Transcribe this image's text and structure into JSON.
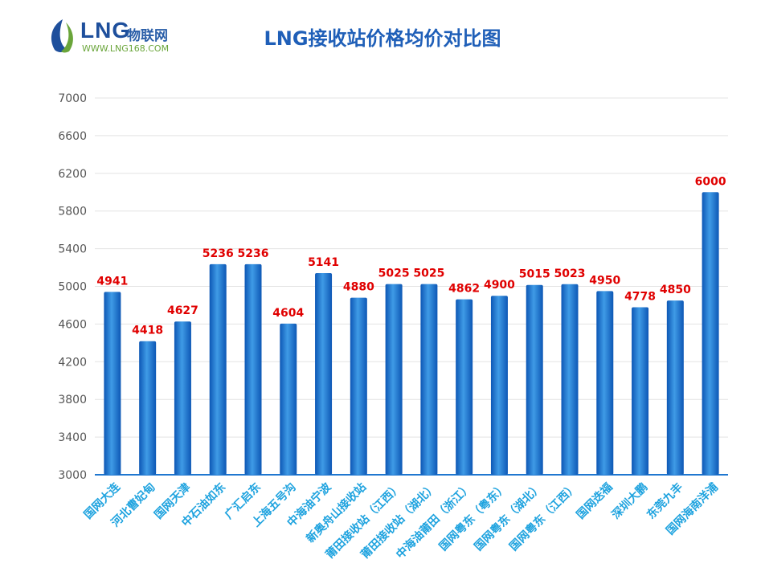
{
  "brand": {
    "name_prefix": "LNG",
    "name_suffix": "物联网",
    "url": "WWW.LNG168.COM",
    "colors": {
      "blue": "#1e4f9c",
      "green": "#6aa53a"
    }
  },
  "chart_data": {
    "type": "bar",
    "title": "LNG接收站价格均价对比图",
    "xlabel": "",
    "ylabel": "",
    "ylim": [
      3000,
      7000
    ],
    "yticks": [
      3000,
      3400,
      3800,
      4200,
      4600,
      5000,
      5400,
      5800,
      6200,
      6600,
      7000
    ],
    "grid": true,
    "categories": [
      "国网大连",
      "河北曹妃甸",
      "国网天津",
      "中石油如东",
      "广汇启东",
      "上海五号沟",
      "中海油宁波",
      "新奥舟山接收站",
      "莆田接收站（江西）",
      "莆田接收站（湖北）",
      "中海油莆田（浙江）",
      "国网粤东（粤东）",
      "国网粤东（湖北）",
      "国网粤东（江西）",
      "国网迭福",
      "深圳大鹏",
      "东莞九丰",
      "国网海南洋浦"
    ],
    "values": [
      4941,
      4418,
      4627,
      5236,
      5236,
      4604,
      5141,
      4880,
      5025,
      5025,
      4862,
      4900,
      5015,
      5023,
      4950,
      4778,
      4850,
      6000
    ],
    "colors": {
      "bar_dark": "#0d57b5",
      "bar_light": "#3f9be6",
      "label": "#e00000",
      "category": "#1fa3df",
      "axis_text": "#555555",
      "grid": "#e3e3e3",
      "baseline": "#1f77d0"
    }
  }
}
